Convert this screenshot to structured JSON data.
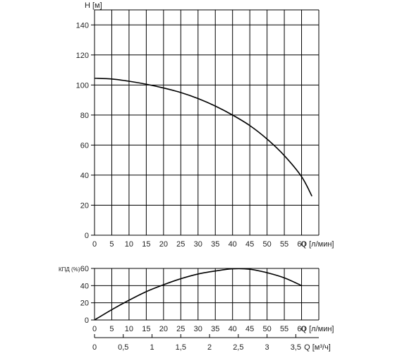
{
  "chart_data": [
    {
      "type": "line",
      "title": "",
      "ylabel": "H [м]",
      "xlabel": "Q [л/мин]",
      "xlim": [
        0,
        65
      ],
      "ylim": [
        0,
        150
      ],
      "x_ticks": [
        0,
        5,
        10,
        15,
        20,
        25,
        30,
        35,
        40,
        45,
        50,
        55,
        60
      ],
      "y_ticks": [
        0,
        20,
        40,
        60,
        80,
        100,
        120,
        140
      ],
      "grid": true,
      "series": [
        {
          "x": [
            0,
            5,
            10,
            15,
            20,
            25,
            30,
            35,
            40,
            45,
            50,
            55,
            60,
            63
          ],
          "y": [
            104.5,
            104,
            102.5,
            100.5,
            98,
            95,
            91,
            86,
            80,
            73,
            64,
            53,
            39,
            26
          ],
          "color": "#000000"
        }
      ]
    },
    {
      "type": "line",
      "title": "",
      "ylabel": "КПД (%)",
      "xlabel": "Q [л/мин]",
      "xlim": [
        0,
        65
      ],
      "ylim": [
        0,
        60
      ],
      "x_ticks": [
        0,
        5,
        10,
        15,
        20,
        25,
        30,
        35,
        40,
        45,
        50,
        55,
        60
      ],
      "y_ticks": [
        0,
        20,
        40,
        60
      ],
      "grid": true,
      "series": [
        {
          "x": [
            0,
            5,
            10,
            15,
            20,
            25,
            30,
            35,
            40,
            45,
            50,
            55,
            60
          ],
          "y": [
            0,
            12,
            23,
            33,
            41,
            48,
            53.5,
            57,
            59.5,
            59,
            55,
            49,
            40
          ],
          "color": "#000000"
        }
      ]
    },
    {
      "type": "axis",
      "xlabel": "Q [м³/ч]",
      "xlim": [
        0,
        3.9
      ],
      "x_ticks": [
        0,
        0.5,
        1,
        1.5,
        2,
        2.5,
        3,
        3.5
      ],
      "x_tick_labels": [
        "0",
        "0,5",
        "1",
        "1,5",
        "2",
        "2,5",
        "3",
        "3,5"
      ]
    }
  ]
}
